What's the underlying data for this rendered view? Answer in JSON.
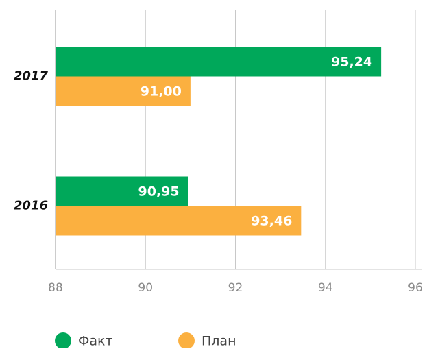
{
  "chart_data": {
    "type": "bar",
    "orientation": "horizontal",
    "categories": [
      "2017",
      "2016"
    ],
    "series": [
      {
        "name": "Факт",
        "color": "#00a85a",
        "values": [
          95.24,
          90.95
        ],
        "value_labels": [
          "95,24",
          "90,95"
        ]
      },
      {
        "name": "План",
        "color": "#fbb040",
        "values": [
          91.0,
          93.46
        ],
        "value_labels": [
          "91,00",
          "93,46"
        ]
      }
    ],
    "xlim": [
      88,
      96
    ],
    "xticks": [
      88,
      90,
      92,
      94,
      96
    ],
    "grid": true,
    "legend": "bottom"
  }
}
